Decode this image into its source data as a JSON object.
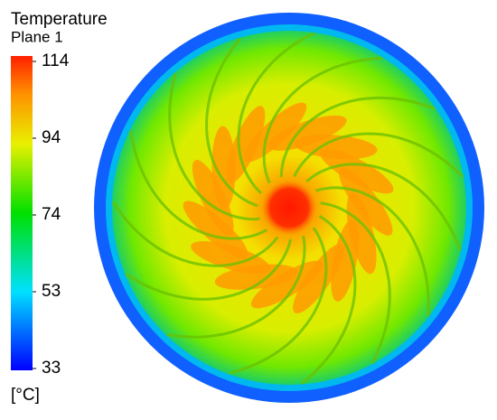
{
  "chart_data": {
    "type": "colorbar",
    "title": "Temperature",
    "subtitle": "Plane 1",
    "unit": "[°C]",
    "ylim": [
      33,
      114
    ],
    "yticks": [
      33,
      {
        "value": 53.25,
        "label": "53"
      },
      {
        "value": 73.5,
        "label": "74"
      },
      {
        "value": 93.75,
        "label": "94"
      },
      114
    ]
  }
}
